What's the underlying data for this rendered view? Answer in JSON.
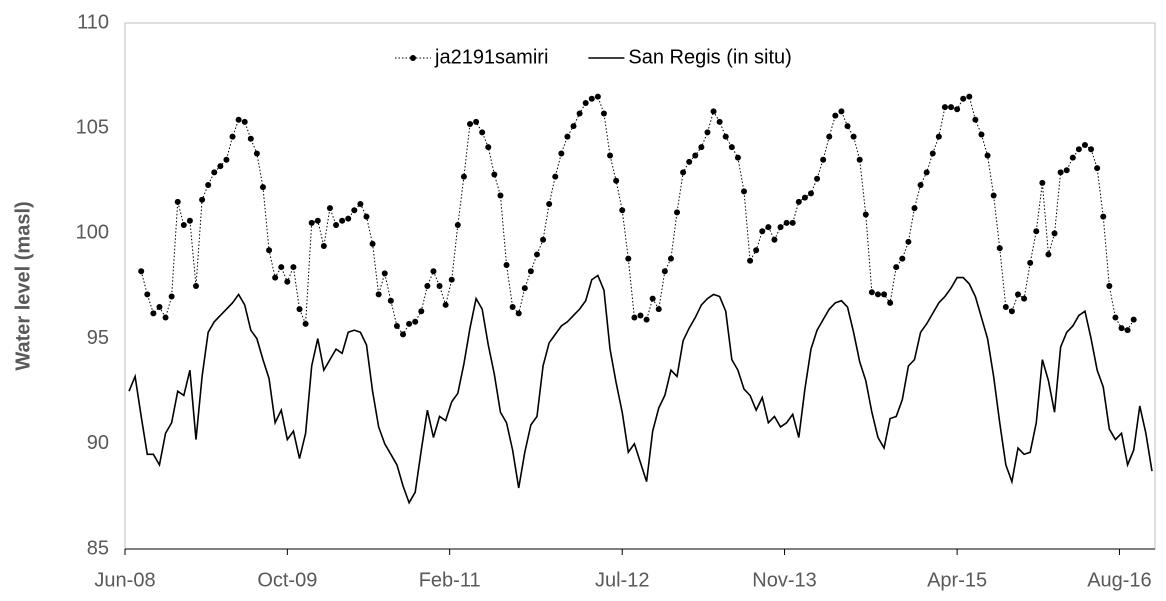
{
  "chart_data": {
    "type": "line",
    "y_label": "Water level (masl)",
    "legend_position": "top",
    "grid": false,
    "xlim": [
      2008.417,
      2016.875
    ],
    "xticks": [
      {
        "value": 2008.417,
        "label": "Jun-08"
      },
      {
        "value": 2009.75,
        "label": "Oct-09"
      },
      {
        "value": 2011.083,
        "label": "Feb-11"
      },
      {
        "value": 2012.5,
        "label": "Jul-12"
      },
      {
        "value": 2013.833,
        "label": "Nov-13"
      },
      {
        "value": 2015.25,
        "label": "Apr-15"
      },
      {
        "value": 2016.583,
        "label": "Aug-16"
      }
    ],
    "ylim": [
      85,
      110
    ],
    "yticks": [
      85,
      90,
      95,
      100,
      105,
      110
    ],
    "x": [
      2008.45,
      2008.5,
      2008.55,
      2008.6,
      2008.65,
      2008.7,
      2008.75,
      2008.8,
      2008.85,
      2008.9,
      2008.95,
      2009.0,
      2009.05,
      2009.1,
      2009.15,
      2009.2,
      2009.25,
      2009.3,
      2009.35,
      2009.4,
      2009.45,
      2009.5,
      2009.55,
      2009.6,
      2009.65,
      2009.7,
      2009.75,
      2009.8,
      2009.85,
      2009.9,
      2009.95,
      2010.0,
      2010.05,
      2010.1,
      2010.15,
      2010.2,
      2010.25,
      2010.3,
      2010.35,
      2010.4,
      2010.45,
      2010.5,
      2010.55,
      2010.6,
      2010.65,
      2010.7,
      2010.75,
      2010.8,
      2010.85,
      2010.9,
      2010.95,
      2011.0,
      2011.05,
      2011.1,
      2011.15,
      2011.2,
      2011.25,
      2011.3,
      2011.35,
      2011.4,
      2011.45,
      2011.5,
      2011.55,
      2011.6,
      2011.65,
      2011.7,
      2011.75,
      2011.8,
      2011.85,
      2011.9,
      2011.95,
      2012.0,
      2012.05,
      2012.1,
      2012.15,
      2012.2,
      2012.25,
      2012.3,
      2012.35,
      2012.4,
      2012.45,
      2012.5,
      2012.55,
      2012.6,
      2012.65,
      2012.7,
      2012.75,
      2012.8,
      2012.85,
      2012.9,
      2012.95,
      2013.0,
      2013.05,
      2013.1,
      2013.15,
      2013.2,
      2013.25,
      2013.3,
      2013.35,
      2013.4,
      2013.45,
      2013.5,
      2013.55,
      2013.6,
      2013.65,
      2013.7,
      2013.75,
      2013.8,
      2013.85,
      2013.9,
      2013.95,
      2014.0,
      2014.05,
      2014.1,
      2014.15,
      2014.2,
      2014.25,
      2014.3,
      2014.35,
      2014.4,
      2014.45,
      2014.5,
      2014.55,
      2014.6,
      2014.65,
      2014.7,
      2014.75,
      2014.8,
      2014.85,
      2014.9,
      2014.95,
      2015.0,
      2015.05,
      2015.1,
      2015.15,
      2015.2,
      2015.25,
      2015.3,
      2015.35,
      2015.4,
      2015.45,
      2015.5,
      2015.55,
      2015.6,
      2015.65,
      2015.7,
      2015.75,
      2015.8,
      2015.85,
      2015.9,
      2015.95,
      2016.0,
      2016.05,
      2016.1,
      2016.15,
      2016.2,
      2016.25,
      2016.3,
      2016.35,
      2016.4,
      2016.45,
      2016.5,
      2016.55,
      2016.6,
      2016.65,
      2016.7,
      2016.75,
      2016.8,
      2016.85
    ],
    "series": [
      {
        "name": "ja2191samiri",
        "color": "#000000",
        "style": "dotted-markers",
        "values": [
          null,
          null,
          98.2,
          97.1,
          96.2,
          96.5,
          96.0,
          97.0,
          101.5,
          100.4,
          100.6,
          97.5,
          101.6,
          102.3,
          102.9,
          103.2,
          103.5,
          104.6,
          105.4,
          105.3,
          104.5,
          103.8,
          102.2,
          99.2,
          97.9,
          98.4,
          97.7,
          98.4,
          96.4,
          95.7,
          100.5,
          100.6,
          99.4,
          101.2,
          100.4,
          100.6,
          100.7,
          101.1,
          101.4,
          100.8,
          99.5,
          97.1,
          98.1,
          96.8,
          95.6,
          95.2,
          95.7,
          95.8,
          96.3,
          97.5,
          98.2,
          97.5,
          96.6,
          97.8,
          100.4,
          102.7,
          105.2,
          105.3,
          104.8,
          104.1,
          102.8,
          101.8,
          98.5,
          96.5,
          96.2,
          97.4,
          98.2,
          99.0,
          99.7,
          101.4,
          102.7,
          103.8,
          104.6,
          105.1,
          105.7,
          106.2,
          106.4,
          106.5,
          105.7,
          103.7,
          102.5,
          101.1,
          98.8,
          96.0,
          96.1,
          95.9,
          96.9,
          96.4,
          98.2,
          98.8,
          101.0,
          102.9,
          103.4,
          103.7,
          104.1,
          104.8,
          105.8,
          105.3,
          104.6,
          104.1,
          103.6,
          102.0,
          98.7,
          99.2,
          100.1,
          100.3,
          99.7,
          100.3,
          100.5,
          100.5,
          101.5,
          101.7,
          101.9,
          102.6,
          103.5,
          104.6,
          105.6,
          105.8,
          105.1,
          104.6,
          103.5,
          100.9,
          97.2,
          97.1,
          97.1,
          96.7,
          98.4,
          98.8,
          99.6,
          101.2,
          102.3,
          102.9,
          103.8,
          104.6,
          106.0,
          106.0,
          105.9,
          106.4,
          106.5,
          105.4,
          104.7,
          103.7,
          101.8,
          99.3,
          96.5,
          96.3,
          97.1,
          96.9,
          98.6,
          100.1,
          102.4,
          99.0,
          100.0,
          102.9,
          103.0,
          103.6,
          104.0,
          104.2,
          104.0,
          103.1,
          100.8,
          97.5,
          96.0,
          95.5,
          95.4,
          95.9,
          null,
          null,
          null
        ]
      },
      {
        "name": "San Regis (in situ)",
        "color": "#000000",
        "style": "solid",
        "values": [
          92.5,
          93.2,
          91.3,
          89.5,
          89.5,
          89.0,
          90.5,
          91.0,
          92.5,
          92.3,
          93.5,
          90.2,
          93.2,
          95.3,
          95.8,
          96.1,
          96.4,
          96.7,
          97.1,
          96.6,
          95.4,
          95.0,
          94.0,
          93.1,
          91.0,
          91.6,
          90.2,
          90.6,
          89.3,
          90.5,
          93.7,
          95.0,
          93.5,
          94.0,
          94.5,
          94.3,
          95.3,
          95.4,
          95.3,
          94.7,
          92.5,
          90.8,
          90.0,
          89.5,
          89.0,
          88.0,
          87.2,
          87.7,
          89.7,
          91.6,
          90.3,
          91.3,
          91.1,
          92.0,
          92.4,
          93.8,
          95.5,
          96.9,
          96.4,
          94.7,
          93.3,
          91.5,
          91.0,
          89.7,
          87.9,
          89.6,
          90.9,
          91.3,
          93.7,
          94.8,
          95.2,
          95.6,
          95.8,
          96.1,
          96.4,
          96.8,
          97.8,
          98.0,
          97.3,
          94.5,
          92.9,
          91.5,
          89.6,
          90.0,
          89.1,
          88.2,
          90.6,
          91.7,
          92.3,
          93.5,
          93.2,
          94.9,
          95.5,
          96.0,
          96.6,
          96.9,
          97.1,
          97.0,
          96.3,
          94.0,
          93.5,
          92.6,
          92.3,
          91.6,
          92.2,
          91.0,
          91.3,
          90.8,
          91.0,
          91.4,
          90.3,
          92.6,
          94.5,
          95.4,
          95.9,
          96.4,
          96.7,
          96.8,
          96.5,
          95.3,
          93.9,
          93.0,
          91.5,
          90.3,
          89.8,
          91.2,
          91.3,
          92.1,
          93.7,
          94.0,
          95.3,
          95.7,
          96.2,
          96.7,
          97.0,
          97.4,
          97.9,
          97.9,
          97.6,
          97.0,
          96.0,
          95.0,
          93.2,
          91.0,
          89.0,
          88.2,
          89.8,
          89.5,
          89.6,
          91.0,
          94.0,
          93.0,
          91.5,
          94.6,
          95.3,
          95.6,
          96.1,
          96.3,
          95.0,
          93.5,
          92.7,
          90.7,
          90.2,
          90.5,
          89.0,
          89.7,
          91.8,
          90.5,
          88.7
        ]
      }
    ]
  }
}
